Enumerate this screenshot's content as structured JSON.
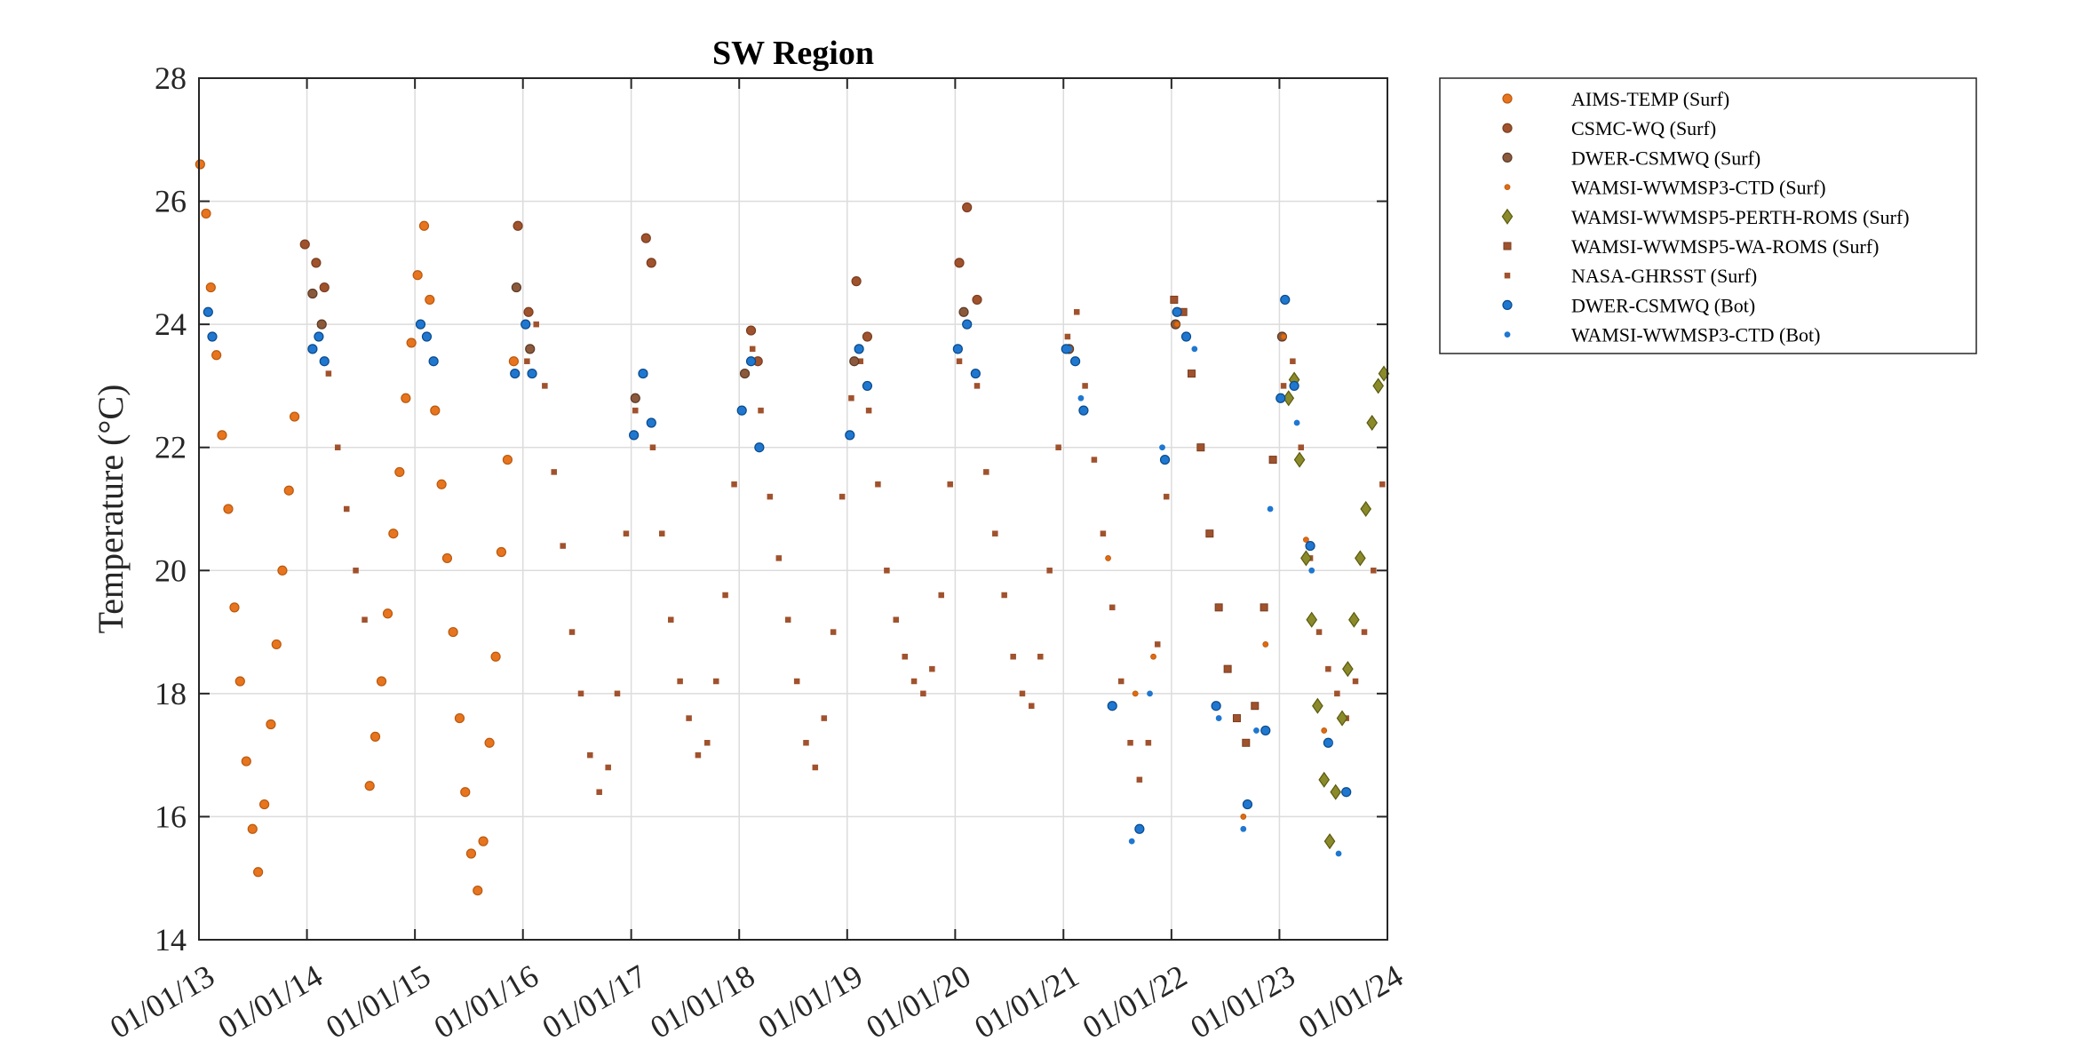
{
  "chart_data": {
    "type": "scatter",
    "title": "SW Region",
    "xlabel": "",
    "ylabel": "Temperature (°C)",
    "xlim": [
      "2013-01-01",
      "2024-01-01"
    ],
    "ylim": [
      14,
      28
    ],
    "y_ticks": [
      14,
      16,
      18,
      20,
      22,
      24,
      26,
      28
    ],
    "x_tick_dates": [
      "2013-01-01",
      "2014-01-01",
      "2015-01-01",
      "2016-01-01",
      "2017-01-01",
      "2018-01-01",
      "2019-01-01",
      "2020-01-01",
      "2021-01-01",
      "2022-01-01",
      "2023-01-01",
      "2024-01-01"
    ],
    "x_tick_labels": [
      "01/01/13",
      "01/01/14",
      "01/01/15",
      "01/01/16",
      "01/01/17",
      "01/01/18",
      "01/01/19",
      "01/01/20",
      "01/01/21",
      "01/01/22",
      "01/01/23",
      "01/01/24"
    ],
    "grid": true,
    "legend_position": "outside-right-top",
    "series": [
      {
        "name": "AIMS-TEMP (Surf)",
        "color": "#e8741e",
        "edge": "#b85a10",
        "marker": "circle",
        "x": [
          "2013-01-05",
          "2013-01-25",
          "2013-02-10",
          "2013-03-01",
          "2013-03-20",
          "2013-04-10",
          "2013-05-01",
          "2013-05-20",
          "2013-06-10",
          "2013-07-01",
          "2013-07-20",
          "2013-08-10",
          "2013-09-01",
          "2013-09-20",
          "2013-10-10",
          "2013-11-01",
          "2013-11-20",
          "2014-08-01",
          "2014-08-20",
          "2014-09-10",
          "2014-10-01",
          "2014-10-20",
          "2014-11-10",
          "2014-12-01",
          "2014-12-20",
          "2015-01-10",
          "2015-02-01",
          "2015-02-20",
          "2015-03-10",
          "2015-04-01",
          "2015-04-20",
          "2015-05-10",
          "2015-06-01",
          "2015-06-20",
          "2015-07-10",
          "2015-08-01",
          "2015-08-20",
          "2015-09-10",
          "2015-10-01",
          "2015-10-20",
          "2015-11-10",
          "2015-12-01"
        ],
        "y": [
          26.6,
          25.8,
          24.6,
          23.5,
          22.2,
          21.0,
          19.4,
          18.2,
          16.9,
          15.8,
          15.1,
          16.2,
          17.5,
          18.8,
          20.0,
          21.3,
          22.5,
          16.5,
          17.3,
          18.2,
          19.3,
          20.6,
          21.6,
          22.8,
          23.7,
          24.8,
          25.6,
          24.4,
          22.6,
          21.4,
          20.2,
          19.0,
          17.6,
          16.4,
          15.4,
          14.8,
          15.6,
          17.2,
          18.6,
          20.3,
          21.8,
          23.4
        ]
      },
      {
        "name": "CSMC-WQ (Surf)",
        "color": "#a0522d",
        "edge": "#7a3d20",
        "marker": "circle",
        "x": [
          "2013-12-25",
          "2014-02-01",
          "2014-03-01",
          "2015-12-15",
          "2016-01-20",
          "2017-02-20",
          "2017-03-10",
          "2018-02-10",
          "2018-03-05",
          "2019-02-01",
          "2019-03-10",
          "2020-01-15",
          "2020-02-10",
          "2020-03-15"
        ],
        "y": [
          25.3,
          25.0,
          24.6,
          25.6,
          24.2,
          25.4,
          25.0,
          23.9,
          23.4,
          24.7,
          23.8,
          25.0,
          25.9,
          24.4
        ]
      },
      {
        "name": "DWER-CSMWQ (Surf)",
        "color": "#8b5a3c",
        "edge": "#5c3a26",
        "marker": "circle",
        "x": [
          "2014-01-20",
          "2014-02-20",
          "2015-12-10",
          "2016-01-25",
          "2017-01-15",
          "2018-01-20",
          "2019-01-25",
          "2020-01-30",
          "2021-01-20",
          "2022-01-15",
          "2023-01-10"
        ],
        "y": [
          24.5,
          24.0,
          24.6,
          23.6,
          22.8,
          23.2,
          23.4,
          24.2,
          23.6,
          24.0,
          23.8
        ]
      },
      {
        "name": "WAMSI-WWMSP3-CTD (Surf)",
        "color": "#e06a10",
        "edge": "#b85a10",
        "marker": "dot",
        "x": [
          "2021-06-01",
          "2021-09-01",
          "2021-11-01",
          "2022-01-20",
          "2022-06-01",
          "2022-09-01",
          "2022-11-15",
          "2023-01-15",
          "2023-04-01",
          "2023-06-01"
        ],
        "y": [
          20.2,
          18.0,
          18.6,
          24.0,
          17.8,
          16.0,
          18.8,
          23.8,
          20.5,
          17.4
        ]
      },
      {
        "name": "WAMSI-WWMSP5-PERTH-ROMS (Surf)",
        "color": "#8a8a2a",
        "edge": "#5a5a10",
        "marker": "diamond",
        "x": [
          "2023-02-01",
          "2023-02-20",
          "2023-03-10",
          "2023-04-01",
          "2023-04-20",
          "2023-05-10",
          "2023-06-01",
          "2023-06-20",
          "2023-07-10",
          "2023-08-01",
          "2023-08-20",
          "2023-09-10",
          "2023-10-01",
          "2023-10-20",
          "2023-11-10",
          "2023-12-01",
          "2023-12-20"
        ],
        "y": [
          22.8,
          23.1,
          21.8,
          20.2,
          19.2,
          17.8,
          16.6,
          15.6,
          16.4,
          17.6,
          18.4,
          19.2,
          20.2,
          21.0,
          22.4,
          23.0,
          23.2
        ]
      },
      {
        "name": "WAMSI-WWMSP5-WA-ROMS (Surf)",
        "color": "#a0522d",
        "edge": "#7a3d20",
        "marker": "square",
        "x": [
          "2022-01-10",
          "2022-02-10",
          "2022-03-10",
          "2022-04-10",
          "2022-05-10",
          "2022-06-10",
          "2022-07-10",
          "2022-08-10",
          "2022-09-10",
          "2022-10-10",
          "2022-11-10",
          "2022-12-10"
        ],
        "y": [
          24.4,
          24.2,
          23.2,
          22.0,
          20.6,
          19.4,
          18.4,
          17.6,
          17.2,
          17.8,
          19.4,
          21.8
        ]
      },
      {
        "name": "NASA-GHRSST (Surf)",
        "color": "#a0522d",
        "edge": "#a0522d",
        "marker": "smallsquare",
        "x": [
          "2014-01-15",
          "2014-02-15",
          "2014-03-15",
          "2014-04-15",
          "2014-05-15",
          "2014-06-15",
          "2014-07-15",
          "2016-01-15",
          "2016-02-15",
          "2016-03-15",
          "2016-04-15",
          "2016-05-15",
          "2016-06-15",
          "2016-07-15",
          "2016-08-15",
          "2016-09-15",
          "2016-10-15",
          "2016-11-15",
          "2016-12-15",
          "2017-01-15",
          "2017-02-15",
          "2017-03-15",
          "2017-04-15",
          "2017-05-15",
          "2017-06-15",
          "2017-07-15",
          "2017-08-15",
          "2017-09-15",
          "2017-10-15",
          "2017-11-15",
          "2017-12-15",
          "2018-01-15",
          "2018-02-15",
          "2018-03-15",
          "2018-04-15",
          "2018-05-15",
          "2018-06-15",
          "2018-07-15",
          "2018-08-15",
          "2018-09-15",
          "2018-10-15",
          "2018-11-15",
          "2018-12-15",
          "2019-01-15",
          "2019-02-15",
          "2019-03-15",
          "2019-04-15",
          "2019-05-15",
          "2019-06-15",
          "2019-07-15",
          "2019-08-15",
          "2019-09-15",
          "2019-10-15",
          "2019-11-15",
          "2019-12-15",
          "2020-01-15",
          "2020-02-15",
          "2020-03-15",
          "2020-04-15",
          "2020-05-15",
          "2020-06-15",
          "2020-07-15",
          "2020-08-15",
          "2020-09-15",
          "2020-10-15",
          "2020-11-15",
          "2020-12-15",
          "2021-01-15",
          "2021-02-15",
          "2021-03-15",
          "2021-04-15",
          "2021-05-15",
          "2021-06-15",
          "2021-07-15",
          "2021-08-15",
          "2021-09-15",
          "2021-10-15",
          "2021-11-15",
          "2021-12-15",
          "2023-01-15",
          "2023-02-15",
          "2023-03-15",
          "2023-04-15",
          "2023-05-15",
          "2023-06-15",
          "2023-07-15",
          "2023-08-15",
          "2023-09-15",
          "2023-10-15",
          "2023-11-15",
          "2023-12-15"
        ],
        "y": [
          23.6,
          24.0,
          23.2,
          22.0,
          21.0,
          20.0,
          19.2,
          23.4,
          24.0,
          23.0,
          21.6,
          20.4,
          19.0,
          18.0,
          17.0,
          16.4,
          16.8,
          18.0,
          20.6,
          22.6,
          23.2,
          22.0,
          20.6,
          19.2,
          18.2,
          17.6,
          17.0,
          17.2,
          18.2,
          19.6,
          21.4,
          23.2,
          23.6,
          22.6,
          21.2,
          20.2,
          19.2,
          18.2,
          17.2,
          16.8,
          17.6,
          19.0,
          21.2,
          22.8,
          23.4,
          22.6,
          21.4,
          20.0,
          19.2,
          18.6,
          18.2,
          18.0,
          18.4,
          19.6,
          21.4,
          23.4,
          24.0,
          23.0,
          21.6,
          20.6,
          19.6,
          18.6,
          18.0,
          17.8,
          18.6,
          20.0,
          22.0,
          23.8,
          24.2,
          23.0,
          21.8,
          20.6,
          19.4,
          18.2,
          17.2,
          16.6,
          17.2,
          18.8,
          21.2,
          23.0,
          23.4,
          22.0,
          20.2,
          19.0,
          18.4,
          18.0,
          17.6,
          18.2,
          19.0,
          20.0,
          21.4
        ]
      },
      {
        "name": "DWER-CSMWQ (Bot)",
        "color": "#1f77d0",
        "edge": "#0b4a8a",
        "marker": "circle",
        "x": [
          "2013-02-01",
          "2013-02-15",
          "2014-01-20",
          "2014-02-10",
          "2014-03-01",
          "2015-01-20",
          "2015-02-10",
          "2015-03-05",
          "2015-12-05",
          "2016-01-10",
          "2016-02-01",
          "2017-01-10",
          "2017-02-10",
          "2017-03-10",
          "2018-01-10",
          "2018-02-10",
          "2018-03-10",
          "2019-01-10",
          "2019-02-10",
          "2019-03-10",
          "2020-01-10",
          "2020-02-10",
          "2020-03-10",
          "2021-01-10",
          "2021-02-10",
          "2021-03-10",
          "2021-06-15",
          "2021-09-15",
          "2021-12-10",
          "2022-01-20",
          "2022-02-20",
          "2022-06-01",
          "2022-09-15",
          "2022-11-15",
          "2023-01-05",
          "2023-01-20",
          "2023-02-20",
          "2023-04-15",
          "2023-06-15",
          "2023-08-15"
        ],
        "y": [
          24.2,
          23.8,
          23.6,
          23.8,
          23.4,
          24.0,
          23.8,
          23.4,
          23.2,
          24.0,
          23.2,
          22.2,
          23.2,
          22.4,
          22.6,
          23.4,
          22.0,
          22.2,
          23.6,
          23.0,
          23.6,
          24.0,
          23.2,
          23.6,
          23.4,
          22.6,
          17.8,
          15.8,
          21.8,
          24.2,
          23.8,
          17.8,
          16.2,
          17.4,
          22.8,
          24.4,
          23.0,
          20.4,
          17.2,
          16.4
        ]
      },
      {
        "name": "WAMSI-WWMSP3-CTD (Bot)",
        "color": "#1f77d0",
        "edge": "#1f77d0",
        "marker": "dot",
        "x": [
          "2021-01-20",
          "2021-03-01",
          "2021-06-15",
          "2021-08-20",
          "2021-10-20",
          "2021-12-01",
          "2022-01-20",
          "2022-03-20",
          "2022-06-10",
          "2022-09-01",
          "2022-10-15",
          "2022-12-01",
          "2023-01-20",
          "2023-03-01",
          "2023-04-20",
          "2023-06-20",
          "2023-07-20"
        ],
        "y": [
          23.6,
          22.8,
          17.8,
          15.6,
          18.0,
          22.0,
          24.2,
          23.6,
          17.6,
          15.8,
          17.4,
          21.0,
          24.4,
          22.4,
          20.0,
          17.2,
          15.4
        ]
      }
    ]
  }
}
